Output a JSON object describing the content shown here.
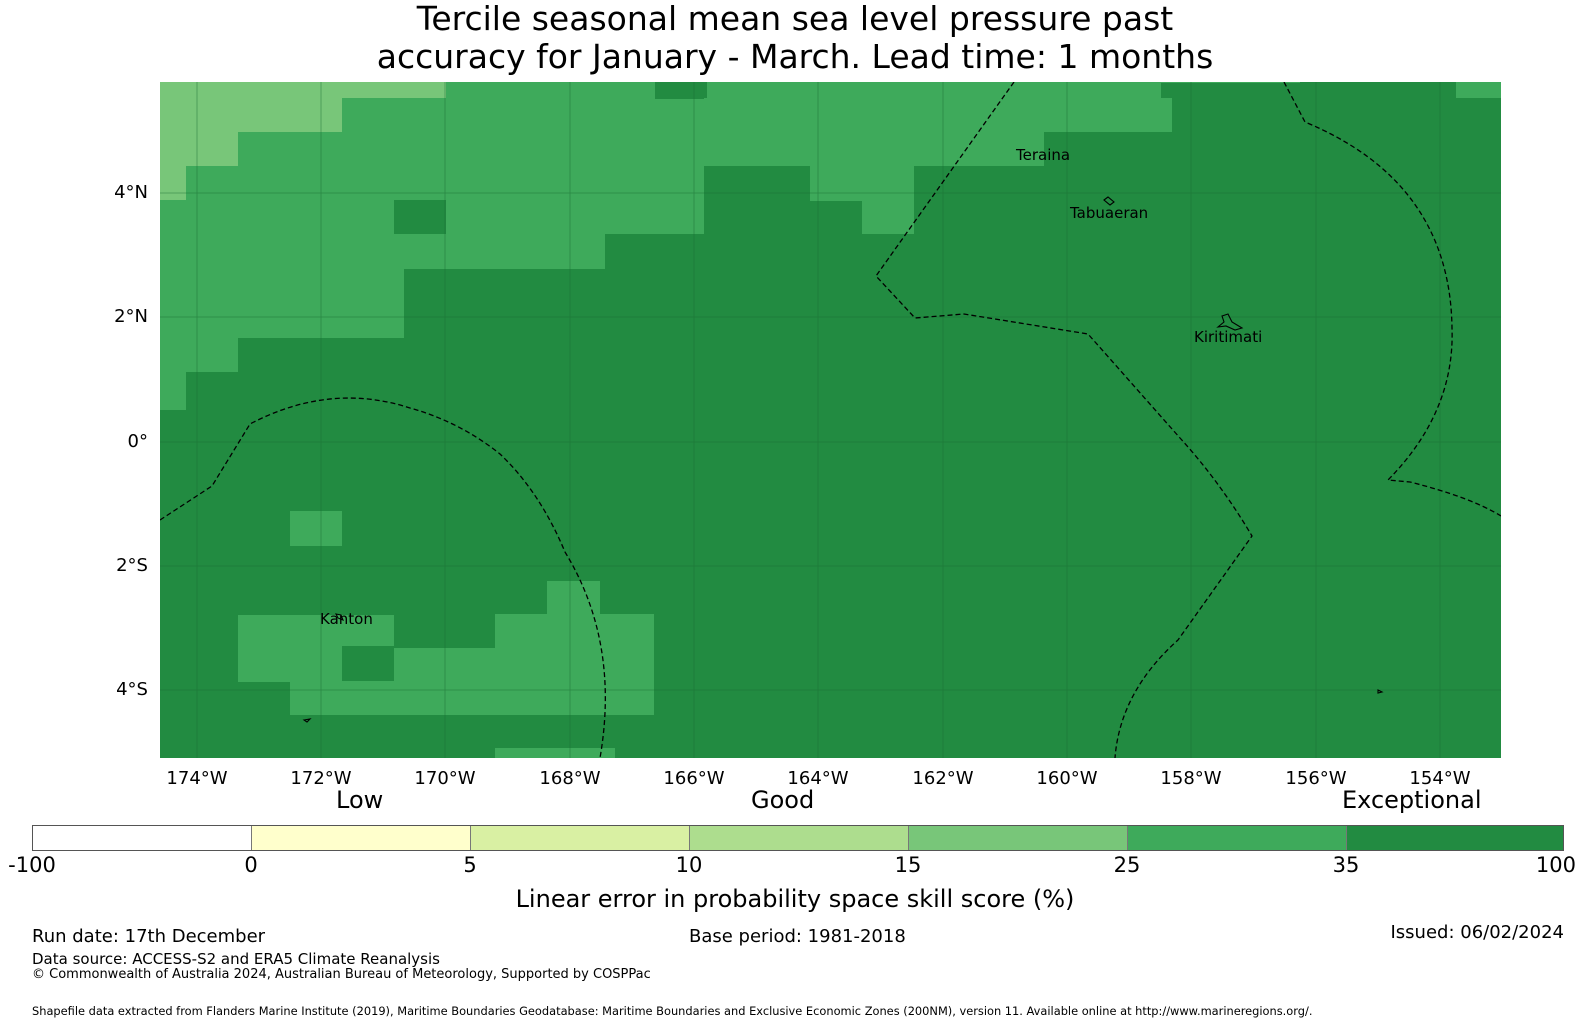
{
  "title_line1": "Tercile seasonal mean sea level pressure past",
  "title_line2": "accuracy for January - March. Lead time: 1 months",
  "map": {
    "lat_labels": [
      "4°N",
      "2°N",
      "0°",
      "2°S",
      "4°S"
    ],
    "lon_labels": [
      "174°W",
      "172°W",
      "170°W",
      "168°W",
      "166°W",
      "164°W",
      "162°W",
      "160°W",
      "158°W",
      "156°W",
      "154°W"
    ],
    "places": [
      "Teraina",
      "Tabuaeran",
      "Kiritimati",
      "Kanton"
    ],
    "colors": {
      "exceptional_dark": "#228b41",
      "good_mid": "#3eaa5b",
      "light_green": "#78c679",
      "boundary": "#000000"
    }
  },
  "legend": {
    "categories": [
      "Low",
      "Good",
      "Exceptional"
    ],
    "ticks": [
      "-100",
      "0",
      "5",
      "10",
      "15",
      "25",
      "35",
      "100"
    ],
    "colors": [
      "#ffffff",
      "#ffffcc",
      "#d9f0a3",
      "#addd8e",
      "#78c679",
      "#3eaa5b",
      "#228b41"
    ],
    "title": "Linear error in probability space skill score (%)"
  },
  "footer": {
    "run_date": "Run date: 17th December",
    "base_period": "Base period: 1981-2018",
    "issued": "Issued: 06/02/2024",
    "data_source": "Data source: ACCESS-S2 and ERA5 Climate Reanalysis",
    "copyright": "© Commonwealth of Australia 2024, Australian Bureau of Meteorology, Supported by COSPPac",
    "shapefile": "Shapefile data extracted from Flanders Marine Institute (2019), Maritime Boundaries Geodatabase: Maritime Boundaries and Exclusive Economic Zones (200NM), version 11. Available online at http://www.marineregions.org/."
  }
}
